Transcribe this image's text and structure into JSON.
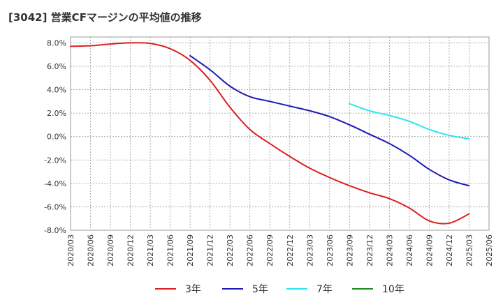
{
  "title": "[3042]  営業CFマージンの平均値の推移",
  "chart_data": {
    "type": "line",
    "title": "[3042]  営業CFマージンの平均値の推移",
    "xlabel": "",
    "ylabel": "",
    "ylim": [
      -8,
      8.5
    ],
    "y_ticks": [
      8,
      6,
      4,
      2,
      0,
      -2,
      -4,
      -6,
      -8
    ],
    "y_tick_labels": [
      "8.0%",
      "6.0%",
      "4.0%",
      "2.0%",
      "0.0%",
      "-2.0%",
      "-4.0%",
      "-6.0%",
      "-8.0%"
    ],
    "x_tick_labels": [
      "2020/03",
      "2020/06",
      "2020/09",
      "2020/12",
      "2021/03",
      "2021/06",
      "2021/09",
      "2021/12",
      "2022/03",
      "2022/06",
      "2022/09",
      "2022/12",
      "2023/03",
      "2023/06",
      "2023/09",
      "2023/12",
      "2024/03",
      "2024/06",
      "2024/09",
      "2024/12",
      "2025/03",
      "2025/06"
    ],
    "grid": true,
    "legend_position": "bottom",
    "series": [
      {
        "name": "3年",
        "color": "#dd1f1f",
        "points": [
          [
            0,
            7.7
          ],
          [
            1,
            7.75
          ],
          [
            2,
            7.9
          ],
          [
            3,
            8.0
          ],
          [
            4,
            7.95
          ],
          [
            5,
            7.5
          ],
          [
            6,
            6.5
          ],
          [
            7,
            4.8
          ],
          [
            8,
            2.5
          ],
          [
            9,
            0.6
          ],
          [
            10,
            -0.6
          ],
          [
            11,
            -1.7
          ],
          [
            12,
            -2.7
          ],
          [
            13,
            -3.5
          ],
          [
            14,
            -4.2
          ],
          [
            15,
            -4.8
          ],
          [
            16,
            -5.3
          ],
          [
            17,
            -6.1
          ],
          [
            18,
            -7.2
          ],
          [
            19,
            -7.4
          ],
          [
            20,
            -6.6
          ]
        ]
      },
      {
        "name": "5年",
        "color": "#1a1ab5",
        "points": [
          [
            6,
            6.9
          ],
          [
            7,
            5.7
          ],
          [
            8,
            4.3
          ],
          [
            9,
            3.4
          ],
          [
            10,
            3.0
          ],
          [
            11,
            2.6
          ],
          [
            12,
            2.2
          ],
          [
            13,
            1.7
          ],
          [
            14,
            1.0
          ],
          [
            15,
            0.2
          ],
          [
            16,
            -0.6
          ],
          [
            17,
            -1.6
          ],
          [
            18,
            -2.8
          ],
          [
            19,
            -3.7
          ],
          [
            20,
            -4.2
          ]
        ]
      },
      {
        "name": "7年",
        "color": "#2be6ee",
        "points": [
          [
            14,
            2.8
          ],
          [
            15,
            2.2
          ],
          [
            16,
            1.8
          ],
          [
            17,
            1.3
          ],
          [
            18,
            0.6
          ],
          [
            19,
            0.1
          ],
          [
            20,
            -0.2
          ]
        ]
      },
      {
        "name": "10年",
        "color": "#1f8a1f",
        "points": []
      }
    ]
  }
}
